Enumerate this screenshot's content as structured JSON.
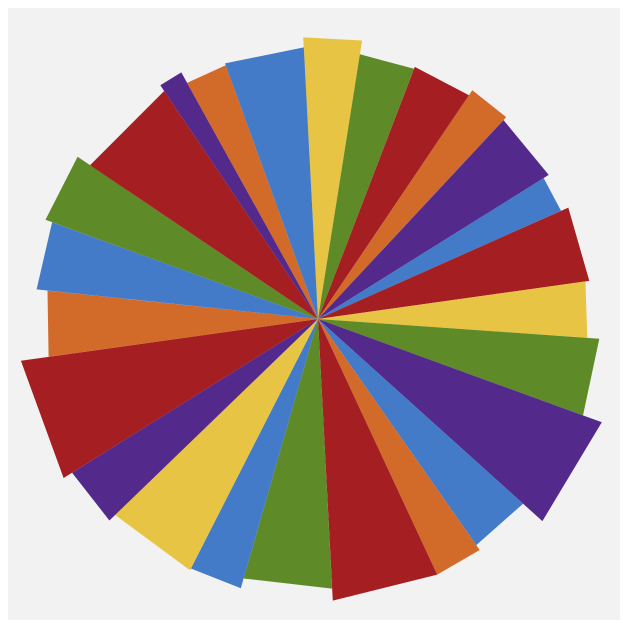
{
  "artwork": {
    "background": "#f2f2f2",
    "palette": {
      "red": "#a51e22",
      "orange": "#d26b2a",
      "yellow": "#e8c444",
      "green": "#5e8a27",
      "blue": "#437bc9",
      "purple": "#53298c"
    },
    "wedges": [
      {
        "color": "yellow"
      },
      {
        "color": "green"
      },
      {
        "color": "red"
      },
      {
        "color": "orange"
      },
      {
        "color": "purple"
      },
      {
        "color": "blue"
      },
      {
        "color": "red"
      },
      {
        "color": "yellow"
      },
      {
        "color": "green"
      },
      {
        "color": "purple"
      },
      {
        "color": "blue"
      },
      {
        "color": "orange"
      },
      {
        "color": "red"
      },
      {
        "color": "green"
      },
      {
        "color": "blue"
      },
      {
        "color": "yellow"
      },
      {
        "color": "purple"
      },
      {
        "color": "red"
      },
      {
        "color": "orange"
      },
      {
        "color": "blue"
      },
      {
        "color": "green"
      },
      {
        "color": "red"
      },
      {
        "color": "purple"
      },
      {
        "color": "orange"
      },
      {
        "color": "blue"
      }
    ]
  }
}
